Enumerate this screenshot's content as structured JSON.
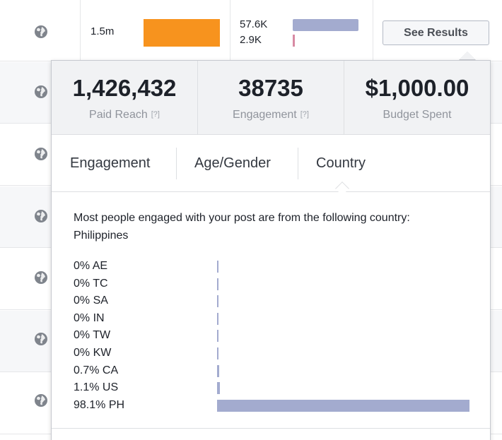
{
  "top_row": {
    "reach": "1.5m",
    "reach_bar_fraction": 0.72,
    "engagement_1": "57.6K",
    "engagement_2": "2.9K",
    "see_results_label": "See Results"
  },
  "colors": {
    "reach_bar": "#f7931e",
    "engagement_bar": "#a3abcf",
    "engagement_bar_secondary": "#d88aa3",
    "country_bar": "#a3abcf"
  },
  "stats": [
    {
      "value": "1,426,432",
      "label": "Paid Reach",
      "help": "[?]"
    },
    {
      "value": "38735",
      "label": "Engagement",
      "help": "[?]"
    },
    {
      "value": "$1,000.00",
      "label": "Budget Spent",
      "help": ""
    }
  ],
  "tabs": [
    {
      "label": "Engagement",
      "active": false
    },
    {
      "label": "Age/Gender",
      "active": false
    },
    {
      "label": "Country",
      "active": true
    }
  ],
  "country_panel": {
    "summary": "Most people engaged with your post are from the following country: Philippines",
    "countries": [
      {
        "label": "0% AE",
        "percent": 0
      },
      {
        "label": "0% TC",
        "percent": 0
      },
      {
        "label": "0% SA",
        "percent": 0
      },
      {
        "label": "0% IN",
        "percent": 0
      },
      {
        "label": "0% TW",
        "percent": 0
      },
      {
        "label": "0% KW",
        "percent": 0
      },
      {
        "label": "0.7% CA",
        "percent": 0.7
      },
      {
        "label": "1.1% US",
        "percent": 1.1
      },
      {
        "label": "98.1% PH",
        "percent": 98.1
      }
    ]
  },
  "icons": {
    "row_icon": "globe-icon"
  }
}
